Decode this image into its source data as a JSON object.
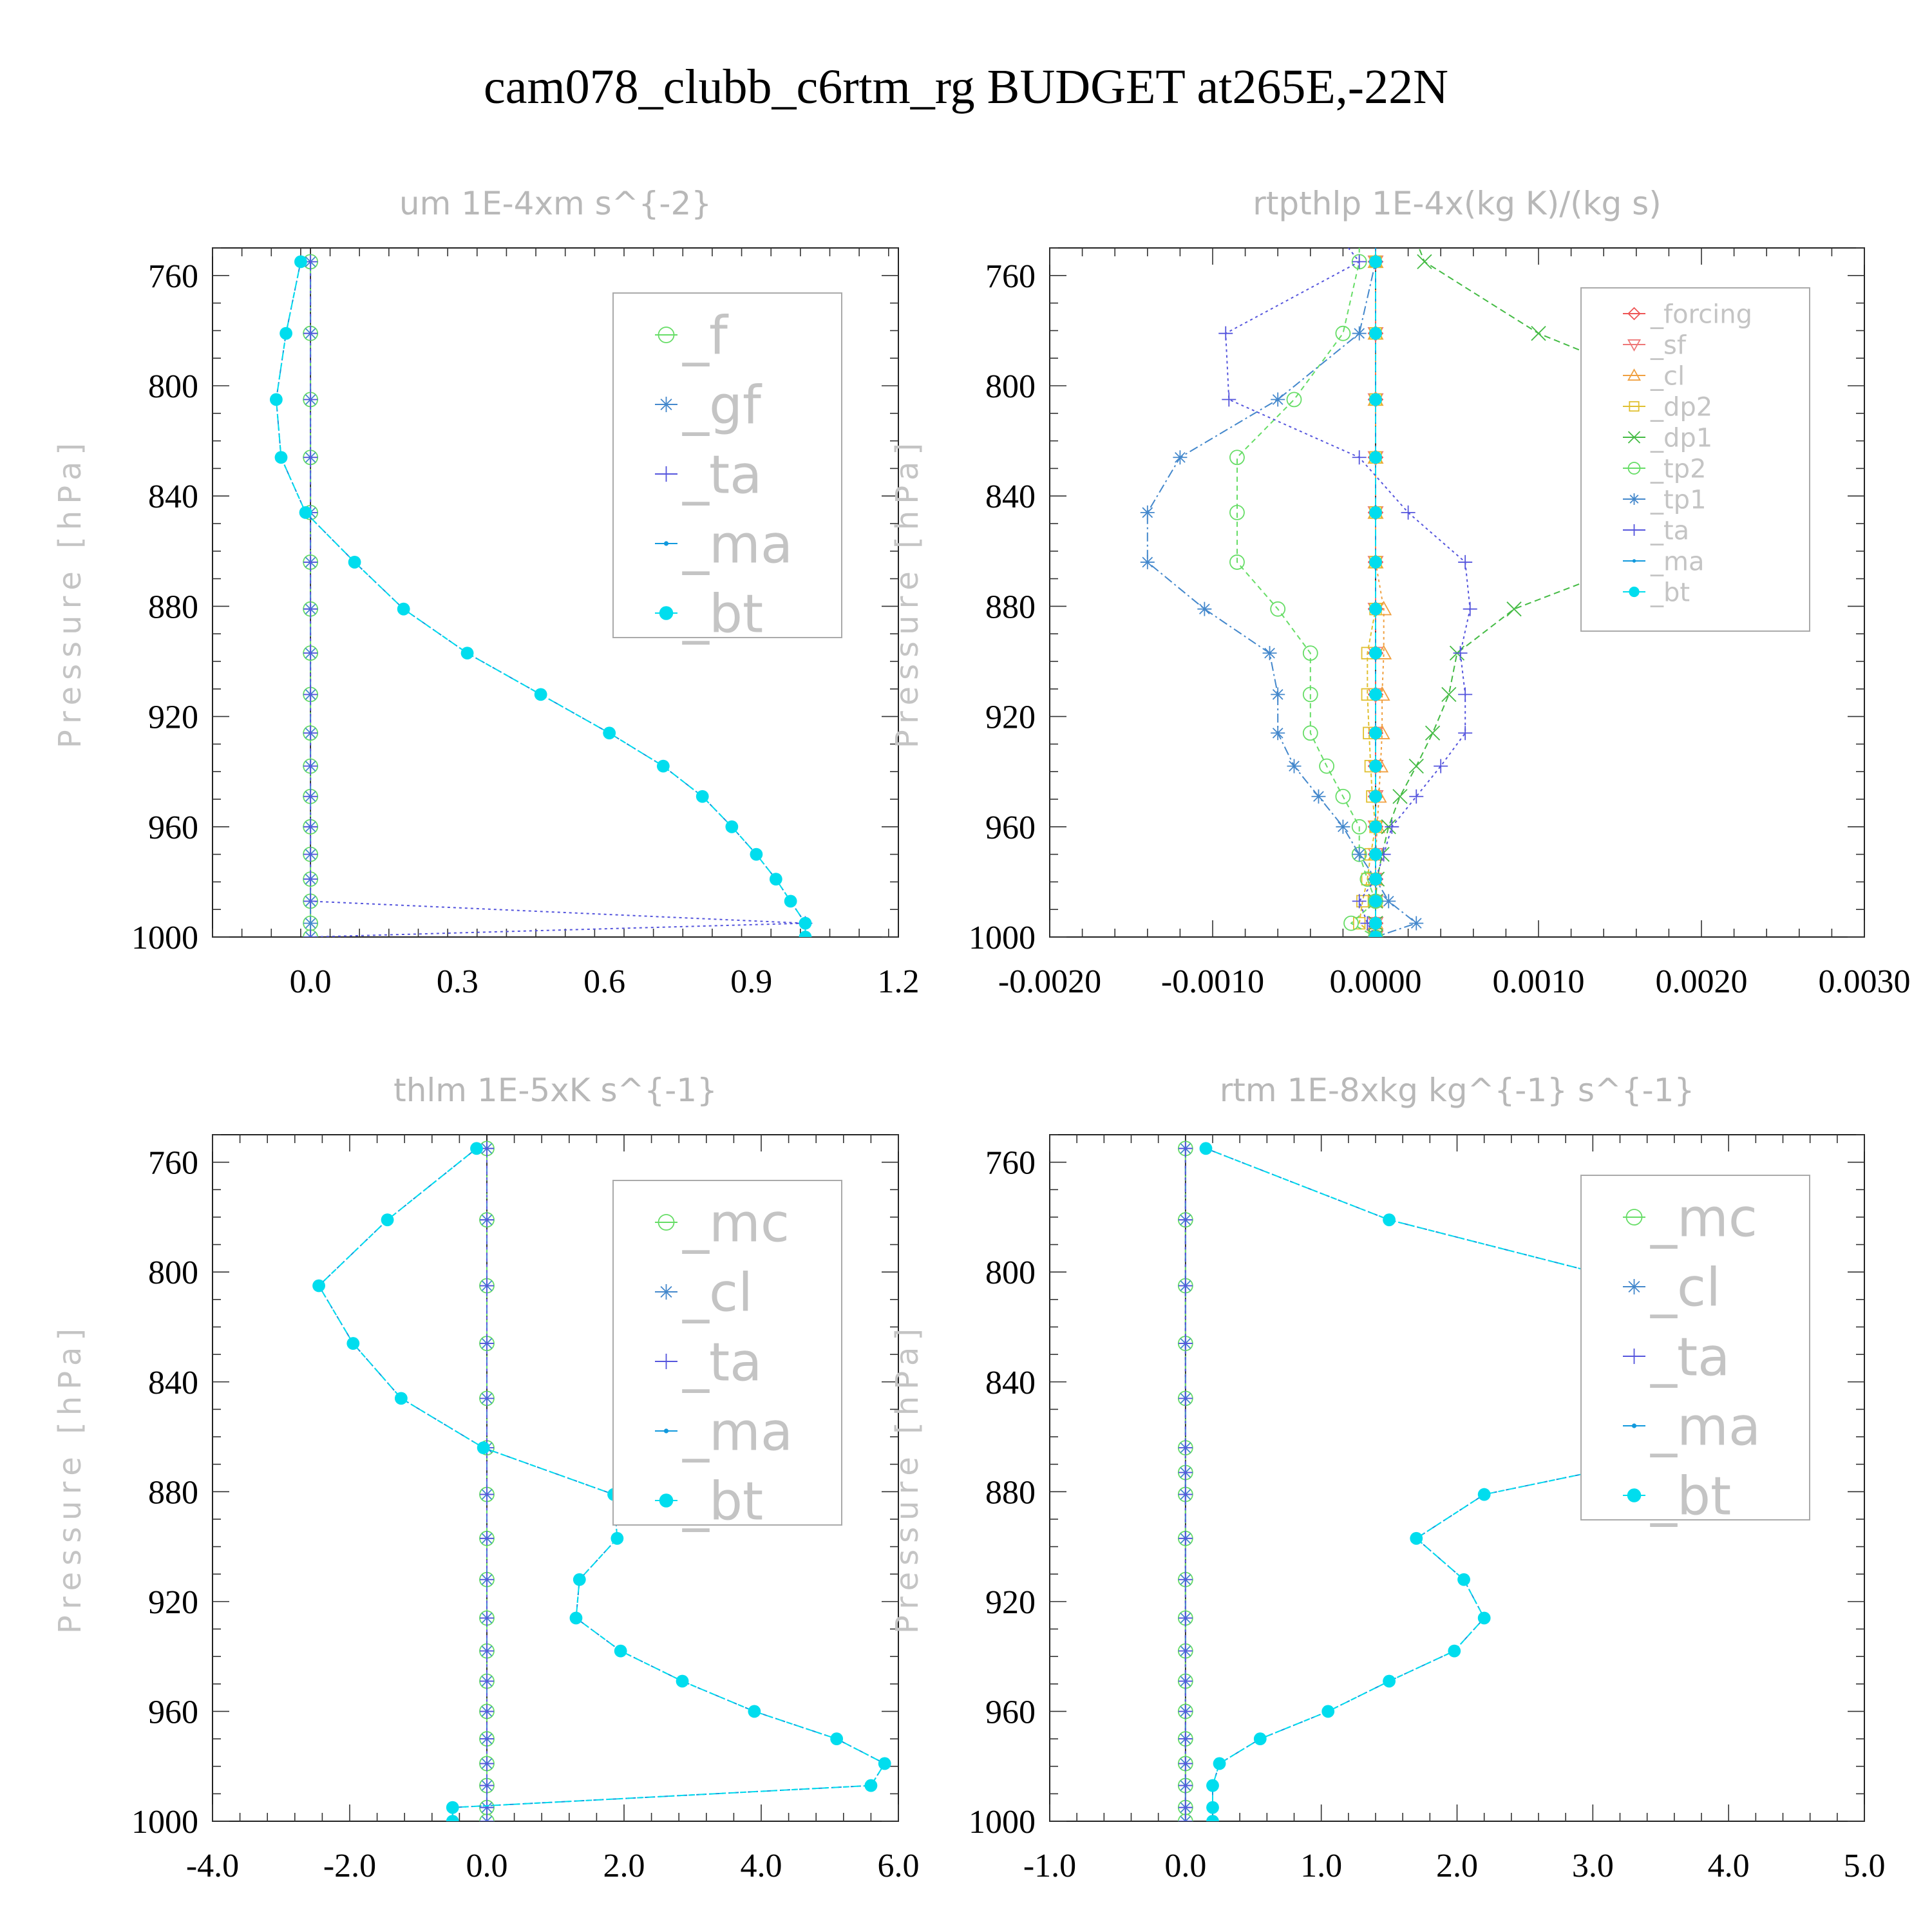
{
  "figure_title": "cam078_clubb_c6rtm_rg  BUDGET at265E,-22N",
  "chart_data": [
    {
      "type": "line",
      "title": "um  1E-4xm s^{-2}",
      "ylabel": "Pressure [hPa]",
      "xlim": [
        -0.2,
        1.2
      ],
      "ylim": [
        750,
        1000
      ],
      "y_inverted": true,
      "x_ticks": [
        "0.0",
        "0.3",
        "0.6",
        "0.9",
        "1.2"
      ],
      "x_tick_values": [
        0.0,
        0.3,
        0.6,
        0.9,
        1.2
      ],
      "y_ticks": [
        "760",
        "800",
        "840",
        "880",
        "920",
        "960",
        "1000"
      ],
      "y_tick_values": [
        760,
        800,
        840,
        880,
        920,
        960,
        1000
      ],
      "legend_position": "top-right",
      "y": [
        755,
        781,
        805,
        826,
        846,
        864,
        881,
        897,
        912,
        926,
        938,
        949,
        960,
        970,
        979,
        987,
        995,
        1000
      ],
      "series": [
        {
          "name": "_f",
          "color": "#66dd66",
          "marker": "circle",
          "values": [
            0,
            0,
            0,
            0,
            0,
            0,
            0,
            0,
            0,
            0,
            0,
            0,
            0,
            0,
            0,
            0,
            0,
            0
          ]
        },
        {
          "name": "_gf",
          "color": "#4488cc",
          "marker": "star",
          "values": [
            0,
            0,
            0,
            0,
            0,
            0,
            0,
            0,
            0,
            0,
            0,
            0,
            0,
            0,
            0,
            0,
            0,
            0
          ]
        },
        {
          "name": "_ta",
          "color": "#5555dd",
          "marker": "plus",
          "values": [
            0,
            0,
            0,
            0,
            0,
            0,
            0,
            0,
            0,
            0,
            0,
            0,
            0,
            0,
            0,
            0,
            1.01,
            0
          ]
        },
        {
          "name": "_ma",
          "color": "#1199dd",
          "marker": "dot",
          "values": [
            -0.02,
            -0.05,
            -0.07,
            -0.06,
            -0.01,
            0.09,
            0.19,
            0.32,
            0.47,
            0.61,
            0.72,
            0.8,
            0.86,
            0.91,
            0.95,
            0.98,
            1.01,
            1.01
          ]
        },
        {
          "name": "_bt",
          "color": "#00ddee",
          "marker": "bigdot",
          "values": [
            -0.02,
            -0.05,
            -0.07,
            -0.06,
            -0.01,
            0.09,
            0.19,
            0.32,
            0.47,
            0.61,
            0.72,
            0.8,
            0.86,
            0.91,
            0.95,
            0.98,
            1.01,
            1.01
          ]
        }
      ]
    },
    {
      "type": "line",
      "title": "rtpthlp  1E-4x(kg K)/(kg s)",
      "ylabel": "Pressure [hPa]",
      "xlim": [
        -0.002,
        0.003
      ],
      "ylim": [
        750,
        1000
      ],
      "y_inverted": true,
      "x_ticks": [
        "-0.0020",
        "-0.0010",
        "0.0000",
        "0.0010",
        "0.0020",
        "0.0030"
      ],
      "x_tick_values": [
        -0.002,
        -0.001,
        0.0,
        0.001,
        0.002,
        0.003
      ],
      "y_ticks": [
        "760",
        "800",
        "840",
        "880",
        "920",
        "960",
        "1000"
      ],
      "y_tick_values": [
        760,
        800,
        840,
        880,
        920,
        960,
        1000
      ],
      "legend_position": "top-right",
      "y": [
        740,
        755,
        781,
        805,
        826,
        846,
        864,
        881,
        897,
        912,
        926,
        938,
        949,
        960,
        970,
        979,
        987,
        995,
        1000
      ],
      "series": [
        {
          "name": "_forcing",
          "color": "#ee5555",
          "marker": "diamond",
          "values": [
            0,
            0,
            0,
            0,
            0,
            0,
            0,
            0,
            0,
            0,
            0,
            0,
            0,
            0,
            0,
            0,
            0,
            0,
            0
          ]
        },
        {
          "name": "_sf",
          "color": "#ee7777",
          "marker": "triangle-down",
          "values": [
            0,
            0,
            0,
            0,
            0,
            0,
            0,
            0,
            0,
            0,
            0,
            0,
            0,
            0,
            0,
            0,
            0,
            0,
            0
          ]
        },
        {
          "name": "_cl",
          "color": "#f0a040",
          "marker": "triangle",
          "values": [
            0,
            0,
            0,
            0,
            0,
            0,
            0,
            5e-05,
            5e-05,
            4e-05,
            4e-05,
            3e-05,
            2e-05,
            1e-05,
            0,
            0,
            0,
            0,
            0
          ]
        },
        {
          "name": "_dp2",
          "color": "#e0c030",
          "marker": "square",
          "values": [
            0,
            0,
            0,
            0,
            0,
            0,
            0,
            0,
            -5e-05,
            -5e-05,
            -4e-05,
            -3e-05,
            -2e-05,
            0,
            -3e-05,
            -5e-05,
            -8e-05,
            -0.0001,
            0
          ]
        },
        {
          "name": "_dp1",
          "color": "#44bb44",
          "marker": "cross",
          "values": [
            0.0002,
            0.0003,
            0.001,
            0.002,
            0.0022,
            0.002,
            0.0016,
            0.00085,
            0.0005,
            0.00045,
            0.00035,
            0.00025,
            0.00015,
            8e-05,
            4e-05,
            1e-05,
            0,
            0,
            0
          ]
        },
        {
          "name": "_tp2",
          "color": "#66dd66",
          "marker": "circle",
          "values": [
            -0.0001,
            -0.0001,
            -0.0002,
            -0.0005,
            -0.00085,
            -0.00085,
            -0.00085,
            -0.0006,
            -0.0004,
            -0.0004,
            -0.0004,
            -0.0003,
            -0.0002,
            -0.0001,
            -0.0001,
            -5e-05,
            0,
            -0.00015,
            0
          ]
        },
        {
          "name": "_tp1",
          "color": "#4488cc",
          "marker": "star",
          "values": [
            0,
            0,
            -0.0001,
            -0.0006,
            -0.0012,
            -0.0014,
            -0.0014,
            -0.00105,
            -0.00065,
            -0.0006,
            -0.0006,
            -0.0005,
            -0.00035,
            -0.0002,
            -0.0001,
            0,
            8e-05,
            0.00025,
            0
          ]
        },
        {
          "name": "_ta",
          "color": "#5555dd",
          "marker": "plus",
          "values": [
            -0.0003,
            -0.0001,
            -0.00092,
            -0.0009,
            -0.0001,
            0.0002,
            0.00055,
            0.00058,
            0.00052,
            0.00055,
            0.00055,
            0.0004,
            0.00025,
            0.0001,
            5e-05,
            0,
            -0.0001,
            -5e-05,
            0
          ]
        },
        {
          "name": "_ma",
          "color": "#1199dd",
          "marker": "dot",
          "values": [
            0,
            0,
            0,
            0,
            0,
            0,
            0,
            0,
            0,
            0,
            0,
            0,
            0,
            0,
            0,
            0,
            0,
            0,
            0
          ]
        },
        {
          "name": "_bt",
          "color": "#00ddee",
          "marker": "bigdot",
          "values": [
            0,
            0,
            0,
            0,
            0,
            0,
            0,
            0,
            0,
            0,
            0,
            0,
            0,
            0,
            0,
            0,
            0,
            0,
            0
          ]
        }
      ]
    },
    {
      "type": "line",
      "title": "thlm  1E-5xK s^{-1}",
      "ylabel": "Pressure [hPa]",
      "xlim": [
        -4.0,
        6.0
      ],
      "ylim": [
        750,
        1000
      ],
      "y_inverted": true,
      "x_ticks": [
        "-4.0",
        "-2.0",
        "0.0",
        "2.0",
        "4.0",
        "6.0"
      ],
      "x_tick_values": [
        -4.0,
        -2.0,
        0.0,
        2.0,
        4.0,
        6.0
      ],
      "y_ticks": [
        "760",
        "800",
        "840",
        "880",
        "920",
        "960",
        "1000"
      ],
      "y_tick_values": [
        760,
        800,
        840,
        880,
        920,
        960,
        1000
      ],
      "legend_position": "top-right",
      "y": [
        755,
        781,
        805,
        826,
        846,
        864,
        881,
        897,
        912,
        926,
        938,
        949,
        960,
        970,
        979,
        987,
        995,
        1000
      ],
      "series": [
        {
          "name": "_mc",
          "color": "#66dd66",
          "marker": "circle",
          "values": [
            0,
            0,
            0,
            0,
            0,
            0,
            0,
            0,
            0,
            0,
            0,
            0,
            0,
            0,
            0,
            0,
            0,
            0
          ]
        },
        {
          "name": "_cl",
          "color": "#4488cc",
          "marker": "star",
          "values": [
            0,
            0,
            0,
            0,
            0,
            0,
            0,
            0,
            0,
            0,
            0,
            0,
            0,
            0,
            0,
            0,
            0,
            0
          ]
        },
        {
          "name": "_ta",
          "color": "#5555dd",
          "marker": "plus",
          "values": [
            0,
            0,
            0,
            0,
            0,
            0,
            0,
            0,
            0,
            0,
            0,
            0,
            0,
            0,
            0,
            0,
            0,
            0
          ]
        },
        {
          "name": "_ma",
          "color": "#1199dd",
          "marker": "dot",
          "values": [
            -0.15,
            -1.45,
            -2.45,
            -1.95,
            -1.25,
            -0.05,
            1.85,
            1.9,
            1.35,
            1.3,
            1.95,
            2.85,
            3.9,
            5.1,
            5.8,
            5.6,
            -0.5,
            -0.5
          ]
        },
        {
          "name": "_bt",
          "color": "#00ddee",
          "marker": "bigdot",
          "values": [
            -0.15,
            -1.45,
            -2.45,
            -1.95,
            -1.25,
            -0.05,
            1.85,
            1.9,
            1.35,
            1.3,
            1.95,
            2.85,
            3.9,
            5.1,
            5.8,
            5.6,
            -0.5,
            -0.5
          ]
        }
      ]
    },
    {
      "type": "line",
      "title": "rtm  1E-8xkg kg^{-1} s^{-1}",
      "ylabel": "Pressure [hPa]",
      "xlim": [
        -1.0,
        5.0
      ],
      "ylim": [
        750,
        1000
      ],
      "y_inverted": true,
      "x_ticks": [
        "-1.0",
        "0.0",
        "1.0",
        "2.0",
        "3.0",
        "4.0",
        "5.0"
      ],
      "x_tick_values": [
        -1.0,
        0.0,
        1.0,
        2.0,
        3.0,
        4.0,
        5.0
      ],
      "y_ticks": [
        "760",
        "800",
        "840",
        "880",
        "920",
        "960",
        "1000"
      ],
      "y_tick_values": [
        760,
        800,
        840,
        880,
        920,
        960,
        1000
      ],
      "legend_position": "top-right",
      "y": [
        755,
        781,
        805,
        826,
        846,
        864,
        873,
        881,
        897,
        912,
        926,
        938,
        949,
        960,
        970,
        979,
        987,
        995,
        1000
      ],
      "series": [
        {
          "name": "_mc",
          "color": "#66dd66",
          "marker": "circle",
          "values": [
            0,
            0,
            0,
            0,
            0,
            0,
            0,
            0,
            0,
            0,
            0,
            0,
            0,
            0,
            0,
            0,
            0,
            0,
            0
          ]
        },
        {
          "name": "_cl",
          "color": "#4488cc",
          "marker": "star",
          "values": [
            0,
            0,
            0,
            0,
            0,
            0,
            0,
            0,
            0,
            0,
            0,
            0,
            0,
            0,
            0,
            0,
            0,
            0,
            0
          ]
        },
        {
          "name": "_ta",
          "color": "#5555dd",
          "marker": "plus",
          "values": [
            0,
            0,
            0,
            0,
            0,
            0,
            0,
            0,
            0,
            0,
            0,
            0,
            0,
            0,
            0,
            0,
            0,
            0,
            0
          ]
        },
        {
          "name": "_ma",
          "color": "#1199dd",
          "marker": "dot",
          "values": [
            0.15,
            1.5,
            3.4,
            4.35,
            4.4,
            3.9,
            2.98,
            2.2,
            1.7,
            2.05,
            2.2,
            1.98,
            1.5,
            1.05,
            0.55,
            0.25,
            0.2,
            0.2,
            0.2
          ]
        },
        {
          "name": "_bt",
          "color": "#00ddee",
          "marker": "bigdot",
          "values": [
            0.15,
            1.5,
            3.4,
            4.35,
            4.4,
            3.9,
            2.98,
            2.2,
            1.7,
            2.05,
            2.2,
            1.98,
            1.5,
            1.05,
            0.55,
            0.25,
            0.2,
            0.2,
            0.2
          ]
        }
      ]
    }
  ]
}
